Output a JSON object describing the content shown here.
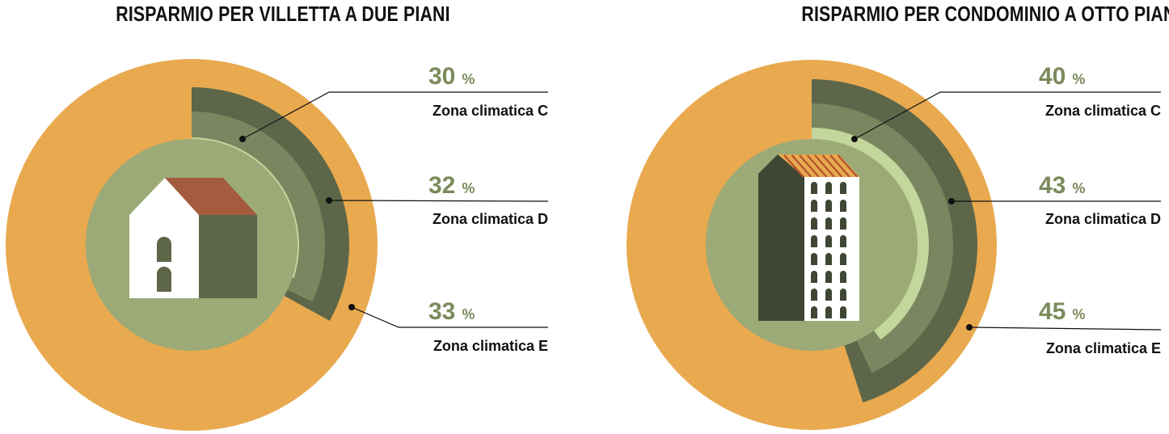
{
  "chart_data": [
    {
      "type": "pie",
      "title": "RISPARMIO PER VILLETTA A DUE PIANI",
      "unit": "%",
      "building_icon": "house-icon",
      "series": [
        {
          "label": "Zona climatica C",
          "value": 30
        },
        {
          "label": "Zona climatica D",
          "value": 32
        },
        {
          "label": "Zona climatica E",
          "value": 33
        }
      ]
    },
    {
      "type": "pie",
      "title": "RISPARMIO PER CONDOMINIO A OTTO PIANI",
      "unit": "%",
      "building_icon": "apartment-building-icon",
      "series": [
        {
          "label": "Zona climatica C",
          "value": 40
        },
        {
          "label": "Zona climatica D",
          "value": 43
        },
        {
          "label": "Zona climatica E",
          "value": 45
        }
      ]
    }
  ],
  "colors": {
    "base": "#e8a94f",
    "ring_c": "#c3d69b",
    "ring_d": "#7a8660",
    "ring_e": "#5d6649",
    "center": "#9caa77",
    "percent_text": "#7c8a5c"
  }
}
